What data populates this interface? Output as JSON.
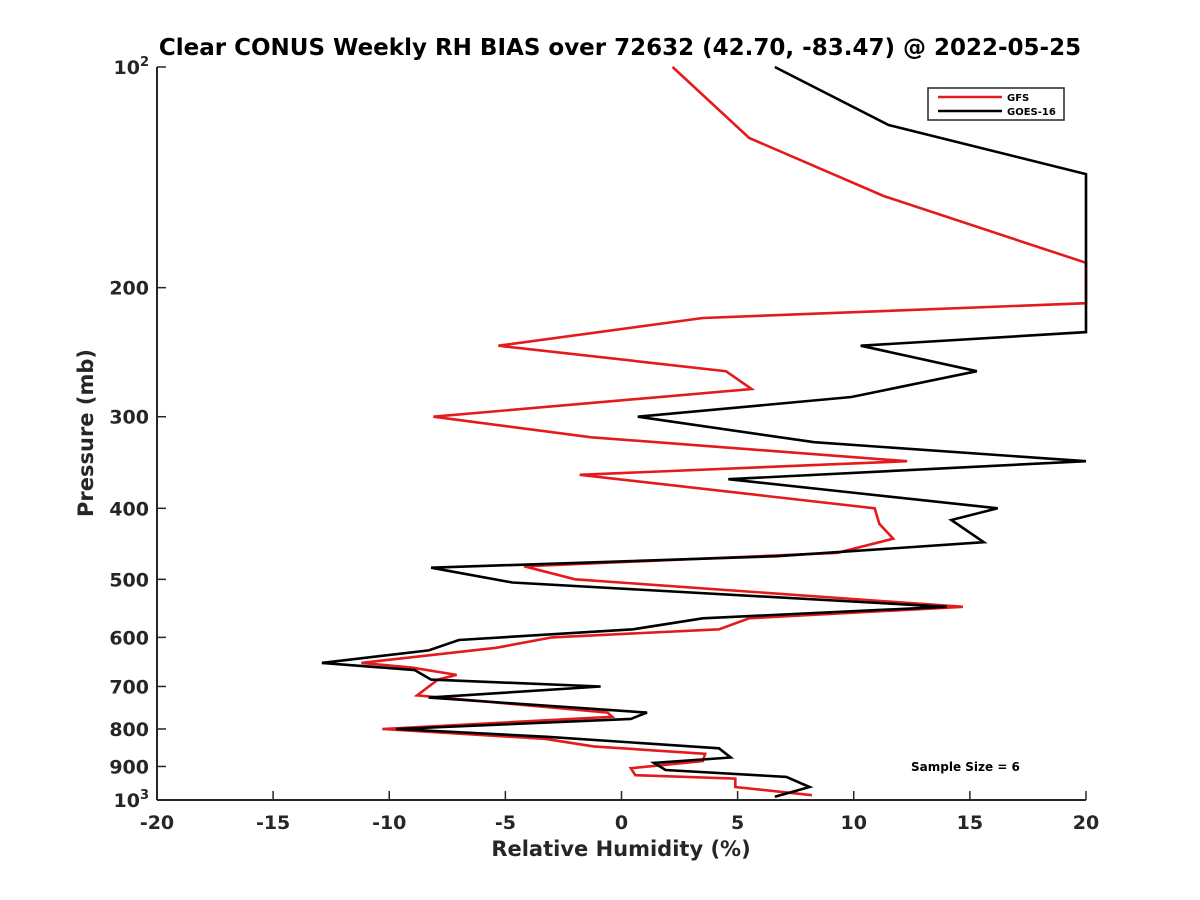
{
  "chart_data": {
    "type": "line",
    "title": "Clear CONUS Weekly RH BIAS over 72632 (42.70, -83.47) @ 2022-05-25",
    "xlabel": "Relative Humidity (%)",
    "ylabel": "Pressure (mb)",
    "xlim": [
      -20,
      20
    ],
    "ylim": [
      100,
      1000
    ],
    "yscale": "log",
    "y_reversed": true,
    "grid": false,
    "legend_position": "top-right",
    "x_ticks": [
      -20,
      -15,
      -10,
      -5,
      0,
      5,
      10,
      15,
      20
    ],
    "x_tick_labels": [
      "-20",
      "-15",
      "-10",
      "-5",
      "0",
      "5",
      "10",
      "15",
      "20"
    ],
    "y_ticks": [
      100,
      200,
      300,
      400,
      500,
      600,
      700,
      800,
      900,
      1000
    ],
    "y_tick_labels": [
      {
        "base": "10",
        "sup": "2"
      },
      {
        "base": "200"
      },
      {
        "base": "300"
      },
      {
        "base": "400"
      },
      {
        "base": "500"
      },
      {
        "base": "600"
      },
      {
        "base": "700"
      },
      {
        "base": "800"
      },
      {
        "base": "900"
      },
      {
        "base": "10",
        "sup": "3"
      }
    ],
    "annotation": "Sample Size = 6",
    "series": [
      {
        "name": "GFS",
        "color": "#e41a1c",
        "points": [
          [
            2.2,
            100
          ],
          [
            5.5,
            125
          ],
          [
            11.3,
            150
          ],
          [
            20,
            185
          ],
          [
            20,
            210
          ],
          [
            3.5,
            220
          ],
          [
            -5.3,
            240
          ],
          [
            4.5,
            260
          ],
          [
            5.6,
            275
          ],
          [
            -8.1,
            300
          ],
          [
            -1.3,
            320
          ],
          [
            12.3,
            345
          ],
          [
            -1.8,
            360
          ],
          [
            10.9,
            400
          ],
          [
            11.1,
            420
          ],
          [
            11.7,
            440
          ],
          [
            9.3,
            460
          ],
          [
            -4.2,
            480
          ],
          [
            -2.0,
            500
          ],
          [
            14.7,
            545
          ],
          [
            5.5,
            565
          ],
          [
            4.2,
            585
          ],
          [
            -3.0,
            600
          ],
          [
            -5.4,
            620
          ],
          [
            -11.2,
            650
          ],
          [
            -9.0,
            660
          ],
          [
            -7.1,
            675
          ],
          [
            -7.9,
            685
          ],
          [
            -8.8,
            720
          ],
          [
            -0.6,
            760
          ],
          [
            -0.4,
            770
          ],
          [
            -10.3,
            800
          ],
          [
            -3.3,
            825
          ],
          [
            -1.2,
            845
          ],
          [
            3.6,
            865
          ],
          [
            3.5,
            885
          ],
          [
            0.4,
            905
          ],
          [
            0.6,
            925
          ],
          [
            4.9,
            935
          ],
          [
            4.9,
            960
          ],
          [
            8.2,
            985
          ]
        ]
      },
      {
        "name": "GOES-16",
        "color": "#000000",
        "points": [
          [
            6.6,
            100
          ],
          [
            11.5,
            120
          ],
          [
            20,
            140
          ],
          [
            20,
            230
          ],
          [
            10.3,
            240
          ],
          [
            15.3,
            260
          ],
          [
            9.9,
            282
          ],
          [
            0.7,
            300
          ],
          [
            8.3,
            325
          ],
          [
            20,
            345
          ],
          [
            4.6,
            365
          ],
          [
            9.7,
            380
          ],
          [
            16.2,
            400
          ],
          [
            14.2,
            415
          ],
          [
            15.6,
            445
          ],
          [
            6.7,
            465
          ],
          [
            -8.2,
            482
          ],
          [
            -4.7,
            505
          ],
          [
            14,
            545
          ],
          [
            3.5,
            565
          ],
          [
            0.5,
            585
          ],
          [
            -7.0,
            605
          ],
          [
            -8.3,
            625
          ],
          [
            -12.9,
            650
          ],
          [
            -8.9,
            665
          ],
          [
            -8.2,
            685
          ],
          [
            -0.9,
            700
          ],
          [
            -8.3,
            725
          ],
          [
            1.1,
            760
          ],
          [
            0.4,
            775
          ],
          [
            -9.7,
            800
          ],
          [
            -3.2,
            820
          ],
          [
            4.2,
            850
          ],
          [
            4.7,
            875
          ],
          [
            1.4,
            890
          ],
          [
            1.9,
            910
          ],
          [
            7.1,
            930
          ],
          [
            8.1,
            960
          ],
          [
            6.6,
            990
          ]
        ]
      }
    ]
  }
}
